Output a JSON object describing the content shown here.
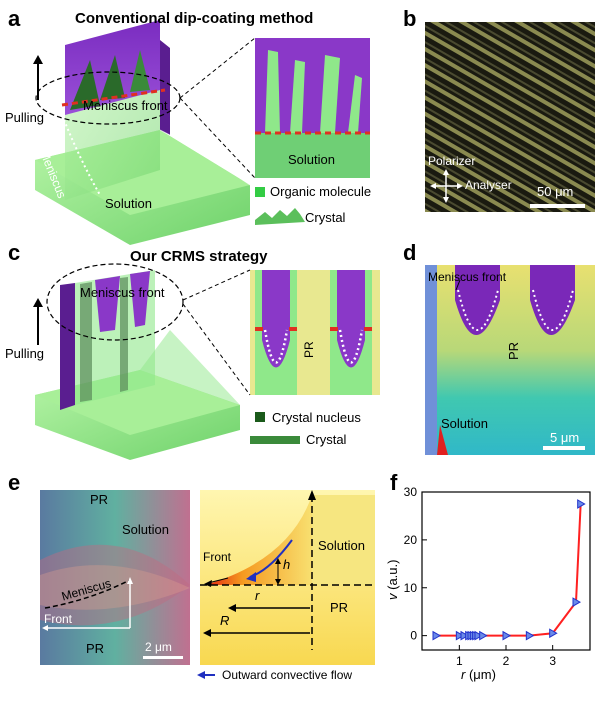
{
  "panel_labels": {
    "a": "a",
    "b": "b",
    "c": "c",
    "d": "d",
    "e": "e",
    "f": "f"
  },
  "panel_a": {
    "title": "Conventional dip-coating method",
    "pulling": "Pulling",
    "meniscus_front": "Meniscus front",
    "meniscus": "Meniscus",
    "solution": "Solution",
    "inset_solution": "Solution",
    "legend_molecule": "Organic molecule",
    "legend_crystal": "Crystal"
  },
  "panel_b": {
    "polarizer": "Polarizer",
    "analyser": "Analyser",
    "scale": "50 μm"
  },
  "panel_c": {
    "title": "Our CRMS strategy",
    "pulling": "Pulling",
    "meniscus_front": "Meniscus front",
    "inset_pr": "PR",
    "legend_nucleus": "Crystal nucleus",
    "legend_crystal": "Crystal"
  },
  "panel_d": {
    "meniscus_front": "Meniscus front",
    "pr": "PR",
    "solution": "Solution",
    "scale": "5 μm"
  },
  "panel_e": {
    "pr_top": "PR",
    "solution": "Solution",
    "meniscus": "Meniscus",
    "front": "Front",
    "pr_bottom": "PR",
    "scale": "2 μm",
    "schem_front": "Front",
    "schem_solution": "Solution",
    "schem_pr": "PR",
    "h": "h",
    "r": "r",
    "R": "R",
    "flow_legend": "Outward convective flow"
  },
  "chart_data": {
    "type": "line",
    "xlabel_var": "r",
    "xlabel_unit": " (μm)",
    "ylabel_var": "v",
    "ylabel_unit": " (a.u.)",
    "xlim": [
      0.2,
      3.8
    ],
    "ylim": [
      -3,
      30
    ],
    "xticks": [
      1,
      2,
      3
    ],
    "yticks": [
      0,
      10,
      20,
      30
    ],
    "x": [
      0.5,
      1.0,
      1.1,
      1.2,
      1.25,
      1.3,
      1.35,
      1.4,
      1.5,
      2.0,
      2.5,
      3.0,
      3.5,
      3.6
    ],
    "y": [
      0,
      0,
      0,
      0,
      0,
      0,
      0,
      0,
      0,
      0,
      0,
      0.5,
      7,
      27.5
    ],
    "line_color": "#ff2020",
    "marker_color": "#2233cc"
  },
  "colors": {
    "green": "#8fe88a",
    "purple": "#8a38c8",
    "red": "#e03020",
    "yellow": "#f0ea80"
  }
}
